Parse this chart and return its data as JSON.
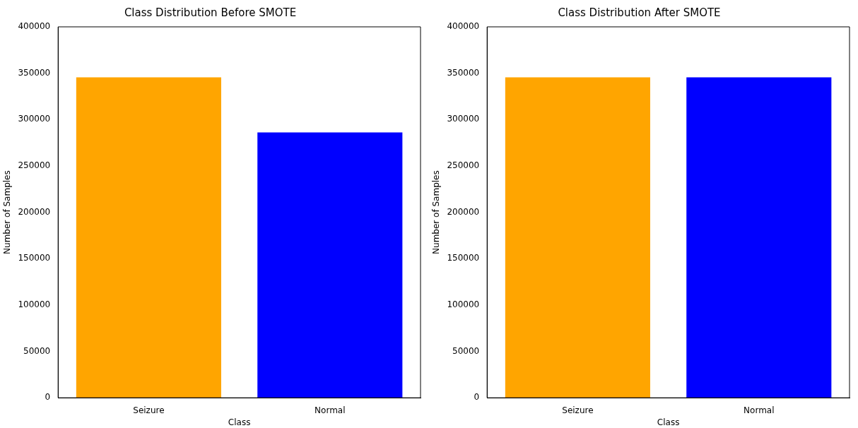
{
  "chart_data": [
    {
      "type": "bar",
      "title": "Class Distribution Before SMOTE",
      "xlabel": "Class",
      "ylabel": "Number of Samples",
      "categories": [
        "Seizure",
        "Normal"
      ],
      "values": [
        345600,
        286100
      ],
      "colors": [
        "#ffa500",
        "#0000ff"
      ],
      "ylim": [
        0,
        400000
      ],
      "yticks": [
        0,
        50000,
        100000,
        150000,
        200000,
        250000,
        300000,
        350000,
        400000
      ],
      "grid": false,
      "legend": false
    },
    {
      "type": "bar",
      "title": "Class Distribution After SMOTE",
      "xlabel": "Class",
      "ylabel": "Number of Samples",
      "categories": [
        "Seizure",
        "Normal"
      ],
      "values": [
        345600,
        345600
      ],
      "colors": [
        "#ffa500",
        "#0000ff"
      ],
      "ylim": [
        0,
        400000
      ],
      "yticks": [
        0,
        50000,
        100000,
        150000,
        200000,
        250000,
        300000,
        350000,
        400000
      ],
      "grid": false,
      "legend": false
    }
  ]
}
